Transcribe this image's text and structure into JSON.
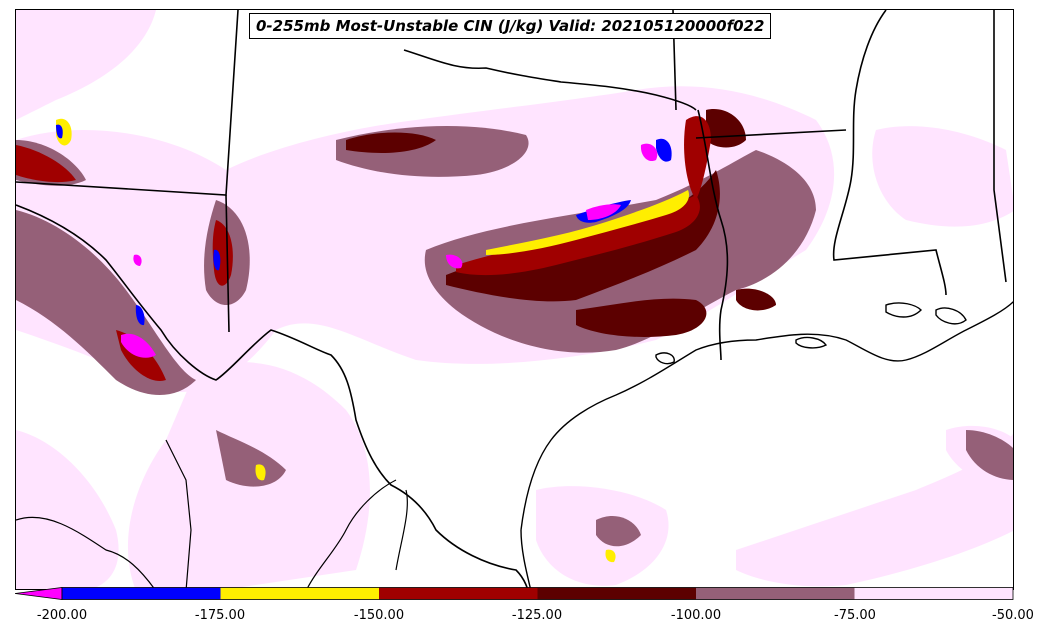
{
  "title": "0-255mb Most-Unstable CIN (J/kg) Valid: 202105120000f022",
  "colorbar": {
    "bins": [
      {
        "min": -999,
        "max": -200,
        "color": "#ff00ff",
        "extend": "min"
      },
      {
        "min": -200,
        "max": -175,
        "color": "#0000ff"
      },
      {
        "min": -175,
        "max": -150,
        "color": "#ffee00"
      },
      {
        "min": -150,
        "max": -125,
        "color": "#a00000"
      },
      {
        "min": -125,
        "max": -100,
        "color": "#5c0000"
      },
      {
        "min": -100,
        "max": -75,
        "color": "#956078"
      },
      {
        "min": -75,
        "max": -50,
        "color": "#ffe4ff"
      }
    ],
    "ticks": [
      "-200.00",
      "-175.00",
      "-150.00",
      "-125.00",
      "-100.00",
      "-75.00",
      "-50.00"
    ]
  },
  "map": {
    "region": "Texas, Oklahoma, Louisiana and northern Mexico",
    "features": [
      "state-borders",
      "international-border",
      "coastline"
    ]
  }
}
